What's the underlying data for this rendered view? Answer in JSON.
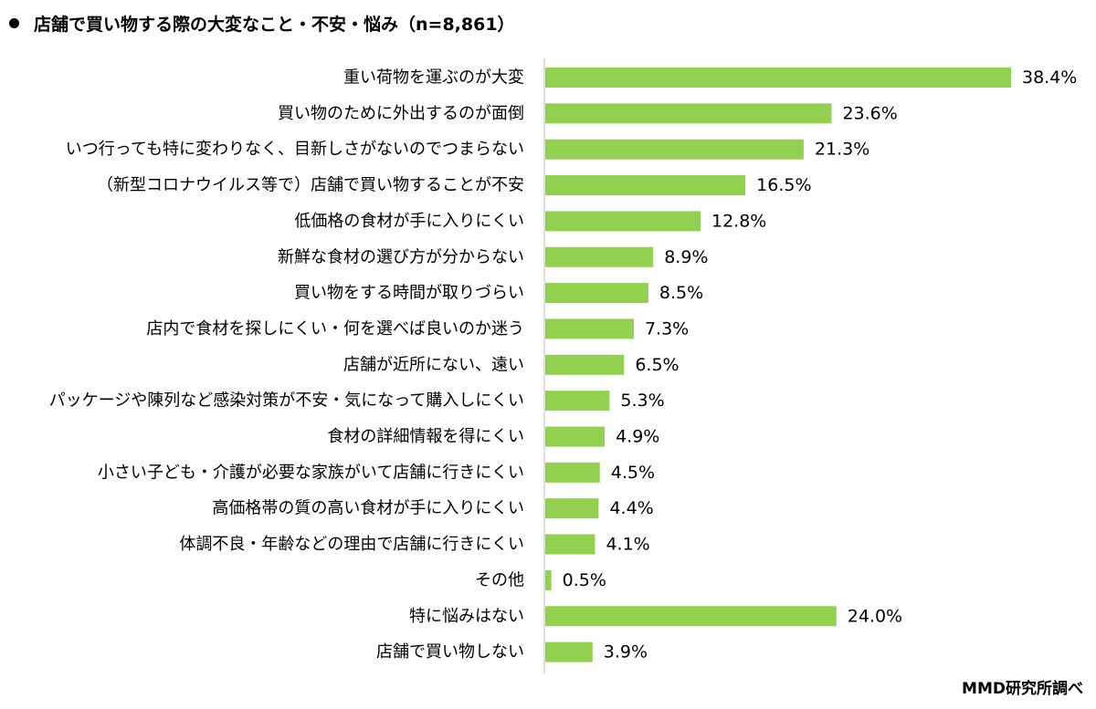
{
  "chart_data": {
    "type": "bar",
    "orientation": "horizontal",
    "title": "店舗で買い物する際の大変なこと・不安・悩み（n=8,861）",
    "categories": [
      "重い荷物を運ぶのが大変",
      "買い物のために外出するのが面倒",
      "いつ行っても特に変わりなく、目新しさがないのでつまらない",
      "（新型コロナウイルス等で）店舗で買い物することが不安",
      "低価格の食材が手に入りにくい",
      "新鮮な食材の選び方が分からない",
      "買い物をする時間が取りづらい",
      "店内で食材を探しにくい・何を選べば良いのか迷う",
      "店舗が近所にない、遠い",
      "パッケージや陳列など感染対策が不安・気になって購入しにくい",
      "食材の詳細情報を得にくい",
      "小さい子ども・介護が必要な家族がいて店舗に行きにくい",
      "高価格帯の質の高い食材が手に入りにくい",
      "体調不良・年齢などの理由で店舗に行きにくい",
      "その他",
      "特に悩みはない",
      "店舗で買い物しない"
    ],
    "values": [
      38.4,
      23.6,
      21.3,
      16.5,
      12.8,
      8.9,
      8.5,
      7.3,
      6.5,
      5.3,
      4.9,
      4.5,
      4.4,
      4.1,
      0.5,
      24.0,
      3.9
    ],
    "value_labels": [
      "38.4%",
      "23.6%",
      "21.3%",
      "16.5%",
      "12.8%",
      "8.9%",
      "8.5%",
      "7.3%",
      "6.5%",
      "5.3%",
      "4.9%",
      "4.5%",
      "4.4%",
      "4.1%",
      "0.5%",
      "24.0%",
      "3.9%"
    ],
    "unit": "%",
    "xlim": [
      0,
      40
    ],
    "grid": false,
    "bar_color": "#92d050"
  },
  "source": "MMD研究所調べ"
}
